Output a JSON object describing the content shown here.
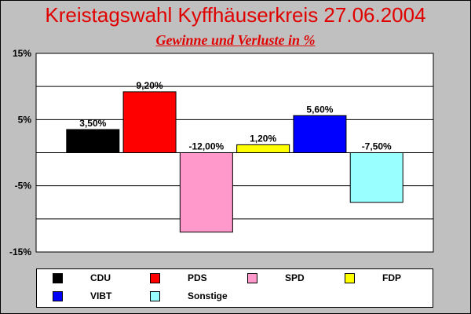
{
  "title": "Kreistagswahl Kyffhäuserkreis 27.06.2004",
  "subtitle": "Gewinne und Verluste in %",
  "chart_data": {
    "type": "bar",
    "categories": [
      "CDU",
      "PDS",
      "SPD",
      "FDP",
      "VIBT",
      "Sonstige"
    ],
    "values": [
      3.5,
      9.2,
      -12.0,
      1.2,
      5.6,
      -7.5
    ],
    "data_labels": [
      "3,50%",
      "9,20%",
      "-12,00%",
      "1,20%",
      "5,60%",
      "-7,50%"
    ],
    "colors": [
      "#000000",
      "#ff0000",
      "#ff99cc",
      "#ffff00",
      "#0000ff",
      "#99ffff"
    ],
    "ylim": [
      -15,
      15
    ],
    "ytick_labels": [
      "15%",
      "5%",
      "-5%",
      "-15%"
    ],
    "ytick_values": [
      15,
      5,
      -5,
      -15
    ],
    "grid": true,
    "legend_position": "bottom"
  }
}
